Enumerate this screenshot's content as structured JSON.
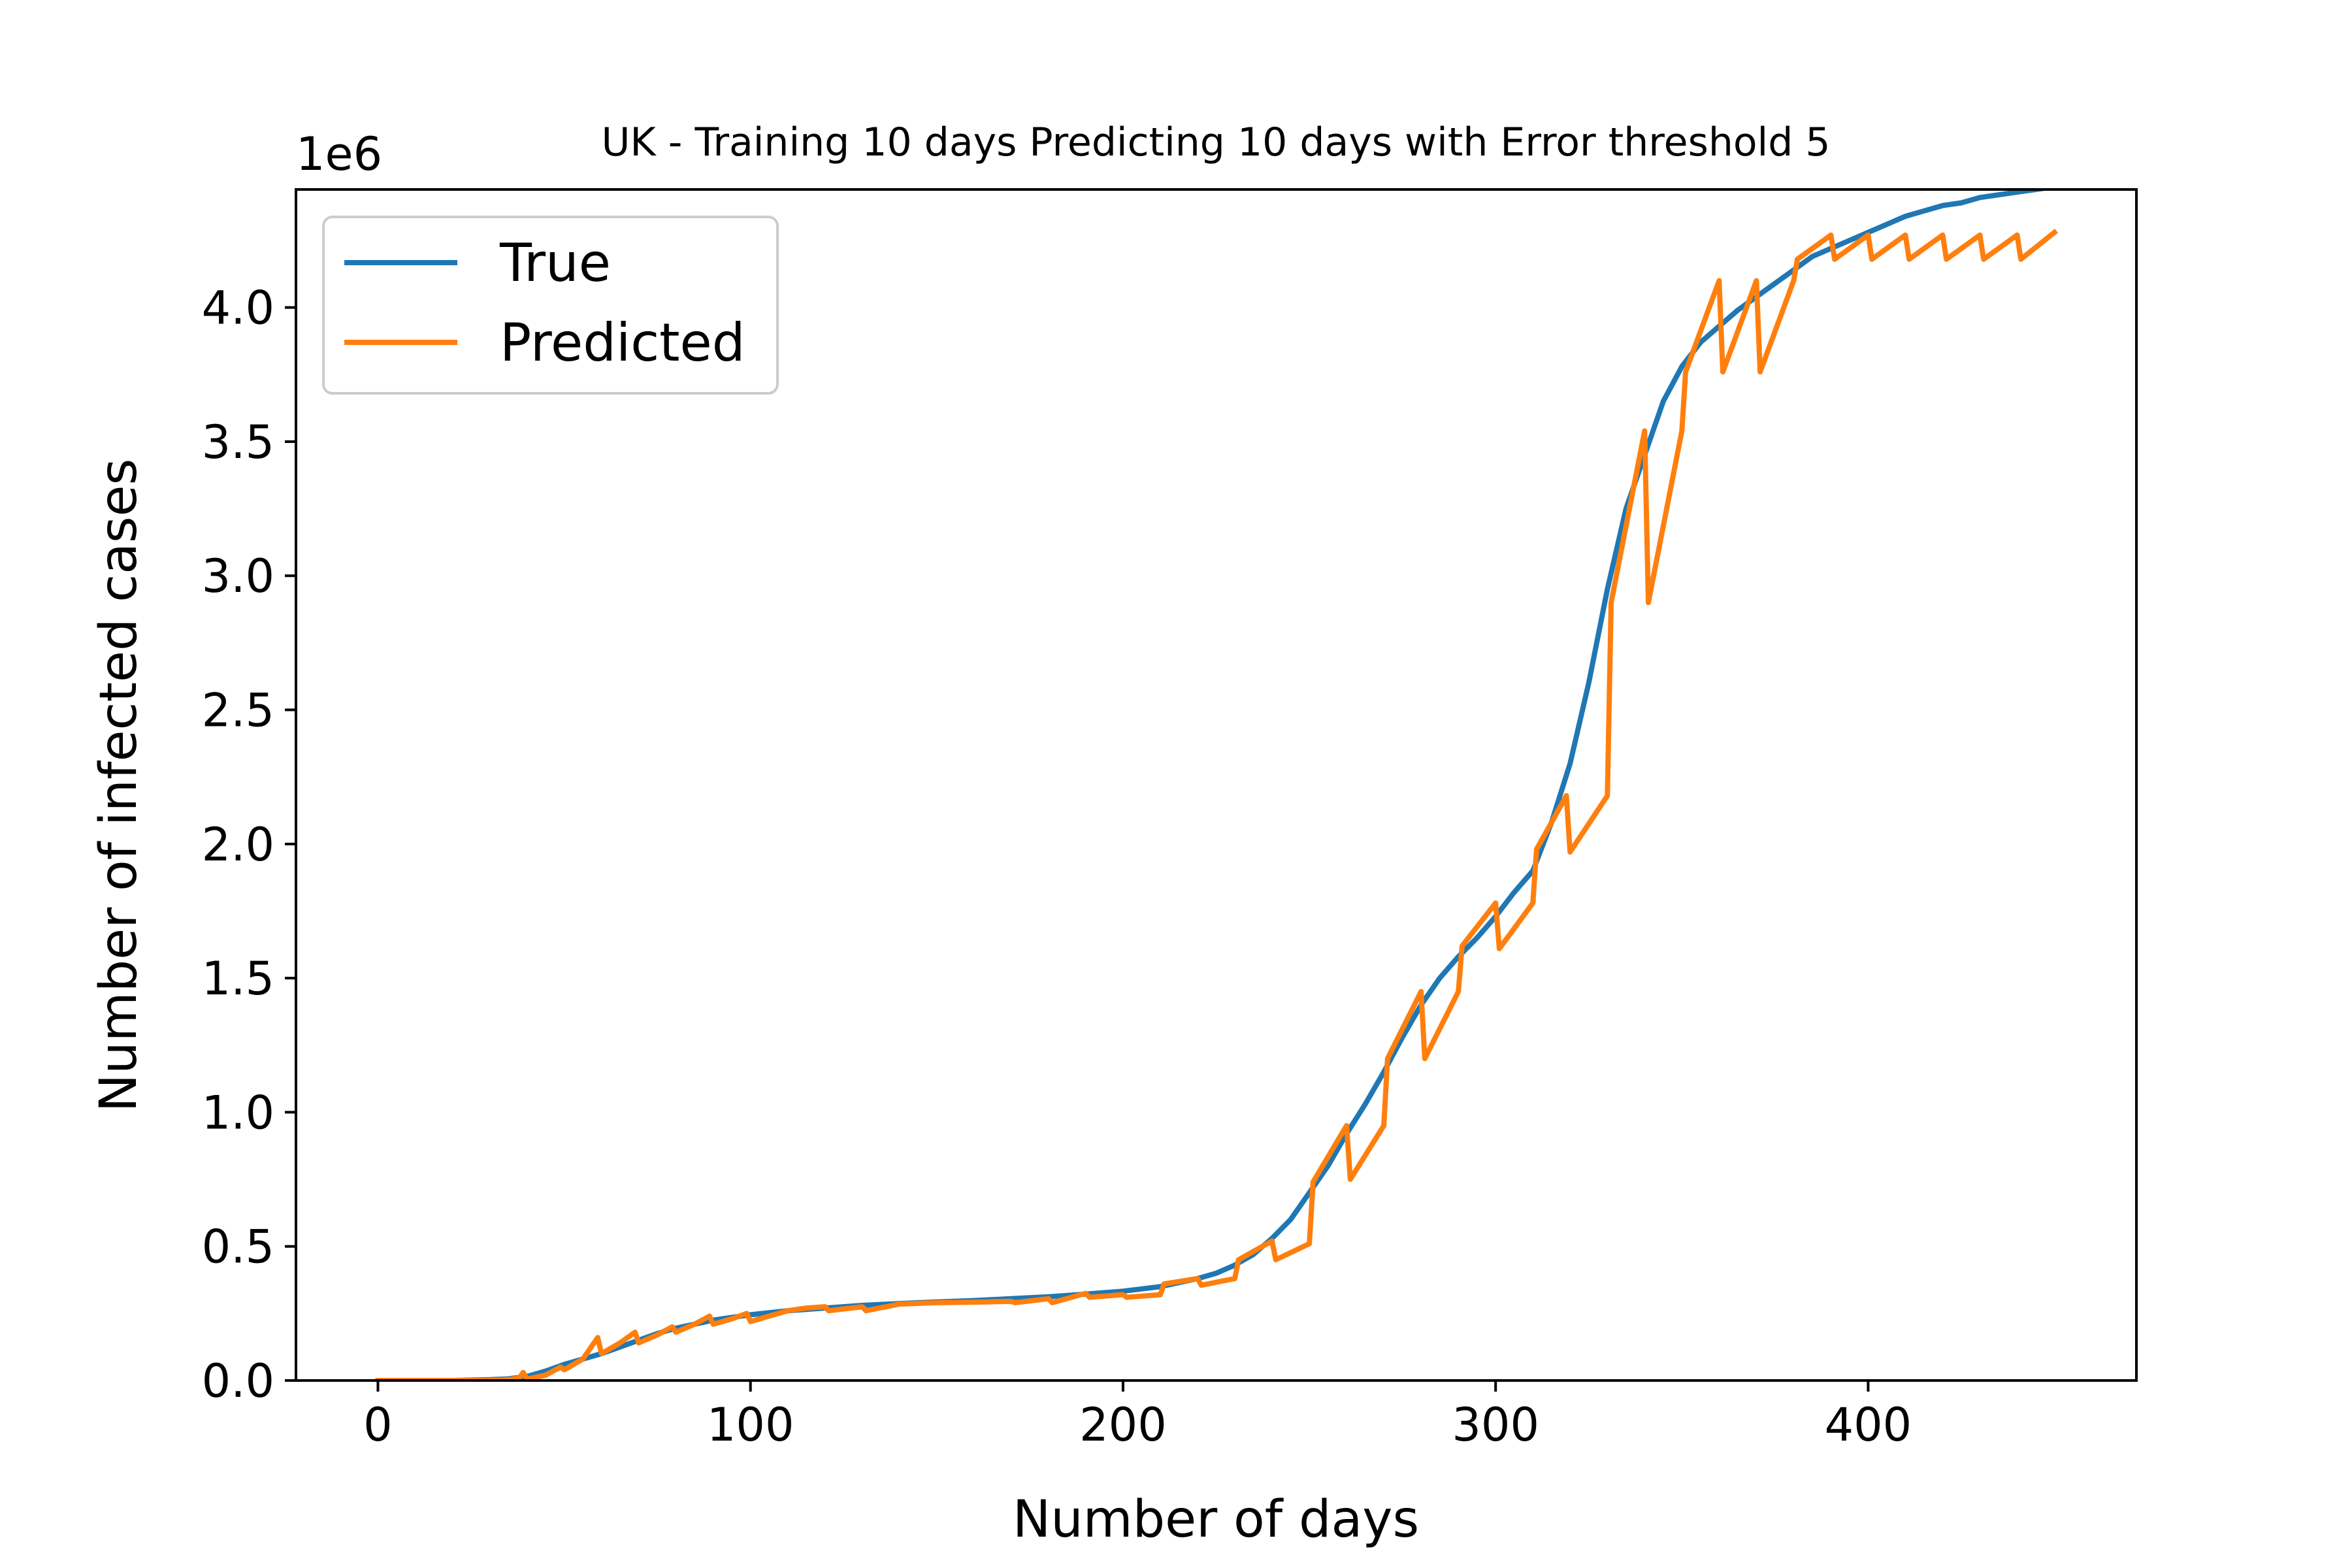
{
  "chart_data": {
    "type": "line",
    "title": "UK - Training 10 days Predicting 10 days with Error threshold 5",
    "xlabel": "Number of days",
    "ylabel": "Number of infected cases",
    "y_offset_label": "1e6",
    "xlim": [
      -22,
      472
    ],
    "ylim": [
      0,
      4.44
    ],
    "x_ticks": [
      0,
      100,
      200,
      300,
      400
    ],
    "x_tick_labels": [
      "0",
      "100",
      "200",
      "300",
      "400"
    ],
    "y_ticks": [
      0.0,
      0.5,
      1.0,
      1.5,
      2.0,
      2.5,
      3.0,
      3.5,
      4.0
    ],
    "y_tick_labels": [
      "0.0",
      "0.5",
      "1.0",
      "1.5",
      "2.0",
      "2.5",
      "3.0",
      "3.5",
      "4.0"
    ],
    "grid": false,
    "legend_position": "top-left",
    "series": [
      {
        "name": "True",
        "color": "#1f77b4",
        "points": [
          [
            0,
            0
          ],
          [
            10,
            0
          ],
          [
            20,
            0
          ],
          [
            30,
            0.003
          ],
          [
            35,
            0.006
          ],
          [
            40,
            0.015
          ],
          [
            45,
            0.035
          ],
          [
            50,
            0.06
          ],
          [
            55,
            0.08
          ],
          [
            60,
            0.1
          ],
          [
            65,
            0.125
          ],
          [
            70,
            0.15
          ],
          [
            75,
            0.175
          ],
          [
            80,
            0.195
          ],
          [
            85,
            0.21
          ],
          [
            90,
            0.225
          ],
          [
            95,
            0.235
          ],
          [
            100,
            0.245
          ],
          [
            110,
            0.26
          ],
          [
            120,
            0.27
          ],
          [
            130,
            0.28
          ],
          [
            140,
            0.287
          ],
          [
            150,
            0.293
          ],
          [
            160,
            0.298
          ],
          [
            170,
            0.305
          ],
          [
            180,
            0.312
          ],
          [
            190,
            0.322
          ],
          [
            200,
            0.333
          ],
          [
            210,
            0.35
          ],
          [
            220,
            0.38
          ],
          [
            225,
            0.4
          ],
          [
            230,
            0.43
          ],
          [
            235,
            0.47
          ],
          [
            240,
            0.53
          ],
          [
            245,
            0.6
          ],
          [
            250,
            0.7
          ],
          [
            255,
            0.8
          ],
          [
            260,
            0.92
          ],
          [
            265,
            1.03
          ],
          [
            270,
            1.15
          ],
          [
            275,
            1.28
          ],
          [
            280,
            1.4
          ],
          [
            285,
            1.5
          ],
          [
            290,
            1.58
          ],
          [
            295,
            1.65
          ],
          [
            300,
            1.73
          ],
          [
            305,
            1.82
          ],
          [
            310,
            1.9
          ],
          [
            315,
            2.08
          ],
          [
            320,
            2.3
          ],
          [
            325,
            2.6
          ],
          [
            330,
            2.95
          ],
          [
            335,
            3.25
          ],
          [
            340,
            3.45
          ],
          [
            345,
            3.65
          ],
          [
            350,
            3.78
          ],
          [
            355,
            3.87
          ],
          [
            360,
            3.93
          ],
          [
            365,
            3.99
          ],
          [
            370,
            4.04
          ],
          [
            375,
            4.09
          ],
          [
            380,
            4.14
          ],
          [
            385,
            4.19
          ],
          [
            390,
            4.22
          ],
          [
            395,
            4.25
          ],
          [
            400,
            4.28
          ],
          [
            405,
            4.31
          ],
          [
            410,
            4.34
          ],
          [
            415,
            4.36
          ],
          [
            420,
            4.38
          ],
          [
            425,
            4.39
          ],
          [
            430,
            4.41
          ],
          [
            435,
            4.42
          ],
          [
            440,
            4.43
          ],
          [
            445,
            4.44
          ],
          [
            450,
            4.45
          ]
        ]
      },
      {
        "name": "Predicted",
        "color": "#ff7f0e",
        "points": [
          [
            0,
            0
          ],
          [
            10,
            0
          ],
          [
            20,
            0
          ],
          [
            30,
            0
          ],
          [
            35,
            0.003
          ],
          [
            38,
            0.01
          ],
          [
            39,
            0.03
          ],
          [
            40,
            0.005
          ],
          [
            45,
            0.02
          ],
          [
            49,
            0.05
          ],
          [
            50,
            0.04
          ],
          [
            55,
            0.08
          ],
          [
            59,
            0.16
          ],
          [
            60,
            0.1
          ],
          [
            65,
            0.14
          ],
          [
            69,
            0.18
          ],
          [
            70,
            0.14
          ],
          [
            75,
            0.17
          ],
          [
            79,
            0.2
          ],
          [
            80,
            0.18
          ],
          [
            85,
            0.21
          ],
          [
            89,
            0.24
          ],
          [
            90,
            0.21
          ],
          [
            95,
            0.23
          ],
          [
            99,
            0.25
          ],
          [
            100,
            0.22
          ],
          [
            105,
            0.24
          ],
          [
            110,
            0.26
          ],
          [
            115,
            0.27
          ],
          [
            120,
            0.275
          ],
          [
            121,
            0.26
          ],
          [
            130,
            0.275
          ],
          [
            131,
            0.26
          ],
          [
            140,
            0.285
          ],
          [
            150,
            0.29
          ],
          [
            160,
            0.292
          ],
          [
            170,
            0.295
          ],
          [
            171,
            0.29
          ],
          [
            180,
            0.305
          ],
          [
            181,
            0.29
          ],
          [
            190,
            0.325
          ],
          [
            191,
            0.31
          ],
          [
            200,
            0.32
          ],
          [
            201,
            0.31
          ],
          [
            210,
            0.32
          ],
          [
            211,
            0.36
          ],
          [
            220,
            0.38
          ],
          [
            221,
            0.355
          ],
          [
            230,
            0.38
          ],
          [
            231,
            0.45
          ],
          [
            240,
            0.52
          ],
          [
            241,
            0.45
          ],
          [
            250,
            0.51
          ],
          [
            251,
            0.74
          ],
          [
            260,
            0.95
          ],
          [
            261,
            0.75
          ],
          [
            270,
            0.95
          ],
          [
            271,
            1.2
          ],
          [
            280,
            1.45
          ],
          [
            281,
            1.2
          ],
          [
            290,
            1.45
          ],
          [
            291,
            1.62
          ],
          [
            300,
            1.78
          ],
          [
            301,
            1.61
          ],
          [
            310,
            1.78
          ],
          [
            311,
            1.98
          ],
          [
            319,
            2.18
          ],
          [
            320,
            1.97
          ],
          [
            330,
            2.18
          ],
          [
            331,
            2.9
          ],
          [
            340,
            3.54
          ],
          [
            341,
            2.9
          ],
          [
            350,
            3.54
          ],
          [
            351,
            3.76
          ],
          [
            360,
            4.1
          ],
          [
            361,
            3.76
          ],
          [
            370,
            4.1
          ],
          [
            371,
            3.76
          ],
          [
            380,
            4.1
          ],
          [
            381,
            4.18
          ],
          [
            390,
            4.27
          ],
          [
            391,
            4.18
          ],
          [
            400,
            4.27
          ],
          [
            401,
            4.18
          ],
          [
            410,
            4.27
          ],
          [
            411,
            4.18
          ],
          [
            420,
            4.27
          ],
          [
            421,
            4.18
          ],
          [
            430,
            4.27
          ],
          [
            431,
            4.18
          ],
          [
            440,
            4.27
          ],
          [
            441,
            4.18
          ],
          [
            450,
            4.28
          ]
        ]
      }
    ]
  }
}
